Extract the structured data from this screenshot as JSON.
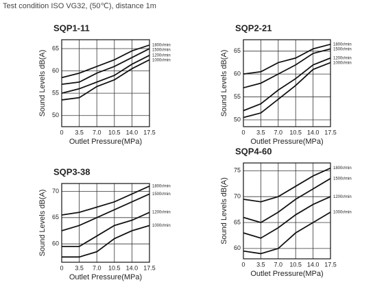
{
  "header": {
    "text": "Test condition ISO VG32, (50℃), distance 1m"
  },
  "chart_data": [
    {
      "type": "line",
      "title": "SQP1-11",
      "xlabel": "Outlet Pressure(MPa)",
      "ylabel": "Sound Levels dB(A)",
      "x": [
        0,
        3.5,
        7,
        10.5,
        14,
        17.5
      ],
      "xlim": [
        0,
        17.5
      ],
      "xticks": [
        0,
        3.5,
        {
          "value": 7,
          "label": "7.0"
        },
        10.5,
        {
          "value": 14,
          "label": "14.0"
        },
        17.5
      ],
      "ylim": [
        47.5,
        67
      ],
      "yticks": [
        50,
        55,
        60,
        65
      ],
      "grid": true,
      "series": [
        {
          "name": "1800r/min",
          "color": "#111",
          "values": [
            58.5,
            59.5,
            61,
            62.5,
            64.5,
            65.8
          ]
        },
        {
          "name": "1500r/min",
          "color": "#111",
          "values": [
            57,
            57.5,
            59.5,
            61,
            63,
            65
          ]
        },
        {
          "name": "1200r/min",
          "color": "#111",
          "values": [
            55,
            56,
            57.5,
            59,
            61.5,
            63.5
          ]
        },
        {
          "name": "1000r/min",
          "color": "#111",
          "values": [
            53.5,
            54,
            56.5,
            58,
            60.5,
            62.5
          ]
        }
      ]
    },
    {
      "type": "line",
      "title": "SQP2-21",
      "xlabel": "Outlet Pressure(MPa)",
      "ylabel": "Sound Levels dB(A)",
      "x": [
        0,
        3.5,
        7,
        10.5,
        14,
        17.5
      ],
      "xlim": [
        0,
        17.5
      ],
      "xticks": [
        0,
        3.5,
        {
          "value": 7,
          "label": "7.0"
        },
        10.5,
        {
          "value": 14,
          "label": "14.0"
        },
        17.5
      ],
      "ylim": [
        48.5,
        67.5
      ],
      "yticks": [
        50,
        55,
        60,
        65
      ],
      "grid": true,
      "series": [
        {
          "name": "1800r/min",
          "color": "#111",
          "values": [
            60,
            60.5,
            62.5,
            63.5,
            65.5,
            66.5
          ]
        },
        {
          "name": "1500r/min",
          "color": "#111",
          "values": [
            57,
            58,
            60,
            62,
            64.5,
            65.5
          ]
        },
        {
          "name": "1200r/min",
          "color": "#111",
          "values": [
            52,
            53.5,
            56.5,
            59,
            62,
            63.5
          ]
        },
        {
          "name": "1000r/min",
          "color": "#111",
          "values": [
            50.5,
            51.5,
            54.5,
            57.5,
            61,
            62.5
          ]
        }
      ]
    },
    {
      "type": "line",
      "title": "SQP3-38",
      "xlabel": "Outlet Pressure(MPa)",
      "ylabel": "Sound Levels dB(A)",
      "x": [
        0,
        3.5,
        7,
        10.5,
        14,
        17.5
      ],
      "xlim": [
        0,
        17.5
      ],
      "xticks": [
        0,
        3.5,
        {
          "value": 7,
          "label": "7.0"
        },
        10.5,
        {
          "value": 14,
          "label": "14.0"
        },
        17.5
      ],
      "ylim": [
        56.5,
        71.5
      ],
      "yticks": [
        60,
        65,
        70
      ],
      "grid": true,
      "series": [
        {
          "name": "1800r/min",
          "color": "#111",
          "values": [
            65.5,
            66,
            67,
            68,
            69.5,
            71
          ]
        },
        {
          "name": "1500r/min",
          "color": "#111",
          "values": [
            62.5,
            63.5,
            65,
            66.5,
            68,
            69.5
          ]
        },
        {
          "name": "1200r/min",
          "color": "#111",
          "values": [
            59.5,
            59.5,
            61.5,
            63.5,
            64.5,
            66
          ]
        },
        {
          "name": "1000r/min",
          "color": "#111",
          "values": [
            57.5,
            57.5,
            58.5,
            61,
            62.5,
            63.5
          ]
        }
      ]
    },
    {
      "type": "line",
      "title": "SQP4-60",
      "xlabel": "Outlet Pressure(MPa)",
      "ylabel": "Sound Levels dB(A)",
      "x": [
        0,
        3.5,
        7,
        10.5,
        14,
        17.5
      ],
      "xlim": [
        0,
        17.5
      ],
      "xticks": [
        0,
        3.5,
        {
          "value": 7,
          "label": "7.0"
        },
        10.5,
        {
          "value": 14,
          "label": "14.0"
        },
        17.5
      ],
      "ylim": [
        58,
        76.5
      ],
      "yticks": [
        60,
        65,
        70,
        75
      ],
      "grid": true,
      "series": [
        {
          "name": "1800r/min",
          "color": "#111",
          "values": [
            69.5,
            69,
            70,
            72,
            74,
            75.5
          ]
        },
        {
          "name": "1500r/min",
          "color": "#111",
          "values": [
            66,
            65,
            67,
            69.5,
            71.5,
            73.5
          ]
        },
        {
          "name": "1200r/min",
          "color": "#111",
          "values": [
            63,
            62,
            64,
            66.5,
            68.5,
            70
          ]
        },
        {
          "name": "1000r/min",
          "color": "#111",
          "values": [
            59.5,
            59,
            60,
            63,
            65,
            67
          ]
        }
      ]
    }
  ]
}
